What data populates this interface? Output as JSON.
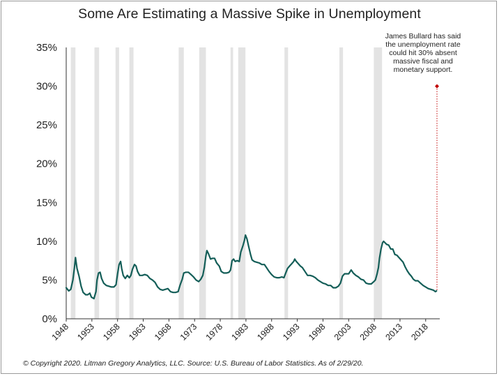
{
  "title": "Some Are Estimating a Massive Spike in Unemployment",
  "footer": "© Copyright 2020. Litman Gregory Analytics, LLC. Source: U.S. Bureau of Labor Statistics. As of 2/29/20.",
  "colors": {
    "line": "#145e58",
    "recession": "#e3e3e3",
    "marker": "#c00000",
    "axis": "#333333"
  },
  "chart_data": {
    "type": "line",
    "title": "Some Are Estimating a Massive Spike in Unemployment",
    "xlabel": "",
    "ylabel": "",
    "xlim": [
      1948,
      2020.2
    ],
    "ylim": [
      0,
      35
    ],
    "y_ticks": [
      "0%",
      "5%",
      "10%",
      "15%",
      "20%",
      "25%",
      "30%",
      "35%"
    ],
    "x_ticks": [
      "1948",
      "1953",
      "1958",
      "1963",
      "1968",
      "1973",
      "1978",
      "1983",
      "1988",
      "1993",
      "1998",
      "2003",
      "2008",
      "2013",
      "2018"
    ],
    "recessions": [
      [
        1948.9,
        1949.8
      ],
      [
        1953.5,
        1954.4
      ],
      [
        1957.6,
        1958.3
      ],
      [
        1960.3,
        1961.1
      ],
      [
        1969.9,
        1970.9
      ],
      [
        1973.9,
        1975.2
      ],
      [
        1980.0,
        1980.5
      ],
      [
        1981.5,
        1982.9
      ],
      [
        1990.5,
        1991.2
      ],
      [
        2001.2,
        2001.9
      ],
      [
        2007.9,
        2009.5
      ]
    ],
    "grid": false,
    "legend": "none",
    "series": [
      {
        "values": [
          [
            1948.0,
            4.0
          ],
          [
            1948.5,
            3.6
          ],
          [
            1948.9,
            3.8
          ],
          [
            1949.3,
            5.0
          ],
          [
            1949.6,
            6.6
          ],
          [
            1949.8,
            7.9
          ],
          [
            1950.1,
            6.5
          ],
          [
            1950.5,
            5.5
          ],
          [
            1950.9,
            4.2
          ],
          [
            1951.3,
            3.4
          ],
          [
            1951.8,
            3.1
          ],
          [
            1952.2,
            3.1
          ],
          [
            1952.6,
            3.3
          ],
          [
            1952.9,
            2.8
          ],
          [
            1953.4,
            2.6
          ],
          [
            1953.8,
            3.5
          ],
          [
            1954.0,
            5.0
          ],
          [
            1954.3,
            5.9
          ],
          [
            1954.6,
            6.0
          ],
          [
            1954.9,
            5.2
          ],
          [
            1955.3,
            4.6
          ],
          [
            1955.8,
            4.3
          ],
          [
            1956.3,
            4.2
          ],
          [
            1956.8,
            4.1
          ],
          [
            1957.3,
            4.1
          ],
          [
            1957.7,
            4.4
          ],
          [
            1958.0,
            5.8
          ],
          [
            1958.3,
            7.0
          ],
          [
            1958.6,
            7.4
          ],
          [
            1958.8,
            6.5
          ],
          [
            1959.1,
            5.6
          ],
          [
            1959.5,
            5.2
          ],
          [
            1959.9,
            5.6
          ],
          [
            1960.3,
            5.3
          ],
          [
            1960.6,
            5.6
          ],
          [
            1960.9,
            6.4
          ],
          [
            1961.3,
            7.0
          ],
          [
            1961.6,
            6.8
          ],
          [
            1961.9,
            6.1
          ],
          [
            1962.3,
            5.6
          ],
          [
            1962.8,
            5.6
          ],
          [
            1963.3,
            5.7
          ],
          [
            1963.8,
            5.6
          ],
          [
            1964.3,
            5.2
          ],
          [
            1964.8,
            5.0
          ],
          [
            1965.3,
            4.7
          ],
          [
            1965.8,
            4.1
          ],
          [
            1966.3,
            3.8
          ],
          [
            1966.8,
            3.7
          ],
          [
            1967.3,
            3.8
          ],
          [
            1967.8,
            3.9
          ],
          [
            1968.3,
            3.5
          ],
          [
            1968.8,
            3.4
          ],
          [
            1969.3,
            3.4
          ],
          [
            1969.8,
            3.5
          ],
          [
            1970.2,
            4.4
          ],
          [
            1970.6,
            5.1
          ],
          [
            1970.9,
            5.9
          ],
          [
            1971.3,
            6.0
          ],
          [
            1971.8,
            6.0
          ],
          [
            1972.3,
            5.7
          ],
          [
            1972.8,
            5.4
          ],
          [
            1973.3,
            5.0
          ],
          [
            1973.8,
            4.8
          ],
          [
            1974.2,
            5.1
          ],
          [
            1974.6,
            5.6
          ],
          [
            1974.9,
            6.6
          ],
          [
            1975.2,
            8.1
          ],
          [
            1975.4,
            8.8
          ],
          [
            1975.7,
            8.4
          ],
          [
            1976.1,
            7.7
          ],
          [
            1976.5,
            7.8
          ],
          [
            1976.9,
            7.8
          ],
          [
            1977.3,
            7.2
          ],
          [
            1977.8,
            6.8
          ],
          [
            1978.2,
            6.1
          ],
          [
            1978.7,
            5.9
          ],
          [
            1979.2,
            5.9
          ],
          [
            1979.7,
            6.0
          ],
          [
            1980.0,
            6.3
          ],
          [
            1980.3,
            7.5
          ],
          [
            1980.6,
            7.7
          ],
          [
            1980.9,
            7.4
          ],
          [
            1981.3,
            7.5
          ],
          [
            1981.7,
            7.4
          ],
          [
            1982.0,
            8.6
          ],
          [
            1982.4,
            9.4
          ],
          [
            1982.7,
            10.1
          ],
          [
            1982.9,
            10.8
          ],
          [
            1983.2,
            10.3
          ],
          [
            1983.5,
            9.4
          ],
          [
            1983.9,
            8.3
          ],
          [
            1984.2,
            7.6
          ],
          [
            1984.6,
            7.4
          ],
          [
            1985.1,
            7.3
          ],
          [
            1985.6,
            7.2
          ],
          [
            1986.1,
            7.0
          ],
          [
            1986.6,
            7.0
          ],
          [
            1987.0,
            6.6
          ],
          [
            1987.5,
            6.1
          ],
          [
            1988.0,
            5.7
          ],
          [
            1988.5,
            5.4
          ],
          [
            1989.0,
            5.3
          ],
          [
            1989.5,
            5.3
          ],
          [
            1990.0,
            5.4
          ],
          [
            1990.4,
            5.3
          ],
          [
            1990.8,
            6.0
          ],
          [
            1991.1,
            6.5
          ],
          [
            1991.5,
            6.8
          ],
          [
            1991.9,
            7.1
          ],
          [
            1992.3,
            7.4
          ],
          [
            1992.5,
            7.7
          ],
          [
            1992.8,
            7.4
          ],
          [
            1993.2,
            7.1
          ],
          [
            1993.6,
            6.8
          ],
          [
            1994.0,
            6.6
          ],
          [
            1994.5,
            6.1
          ],
          [
            1995.0,
            5.6
          ],
          [
            1995.5,
            5.6
          ],
          [
            1996.0,
            5.5
          ],
          [
            1996.5,
            5.3
          ],
          [
            1997.0,
            5.0
          ],
          [
            1997.5,
            4.8
          ],
          [
            1998.0,
            4.6
          ],
          [
            1998.5,
            4.5
          ],
          [
            1999.0,
            4.3
          ],
          [
            1999.5,
            4.3
          ],
          [
            2000.0,
            4.0
          ],
          [
            2000.5,
            4.0
          ],
          [
            2001.0,
            4.2
          ],
          [
            2001.4,
            4.6
          ],
          [
            2001.8,
            5.5
          ],
          [
            2002.2,
            5.8
          ],
          [
            2002.6,
            5.8
          ],
          [
            2003.0,
            5.8
          ],
          [
            2003.5,
            6.3
          ],
          [
            2003.9,
            5.9
          ],
          [
            2004.4,
            5.6
          ],
          [
            2004.9,
            5.4
          ],
          [
            2005.4,
            5.1
          ],
          [
            2005.9,
            5.0
          ],
          [
            2006.4,
            4.6
          ],
          [
            2006.9,
            4.5
          ],
          [
            2007.4,
            4.5
          ],
          [
            2007.9,
            4.8
          ],
          [
            2008.2,
            5.0
          ],
          [
            2008.5,
            5.7
          ],
          [
            2008.8,
            6.6
          ],
          [
            2009.0,
            7.8
          ],
          [
            2009.3,
            9.0
          ],
          [
            2009.6,
            9.8
          ],
          [
            2009.8,
            10.0
          ],
          [
            2010.1,
            9.8
          ],
          [
            2010.4,
            9.6
          ],
          [
            2010.8,
            9.5
          ],
          [
            2011.2,
            9.0
          ],
          [
            2011.6,
            9.0
          ],
          [
            2012.0,
            8.3
          ],
          [
            2012.4,
            8.2
          ],
          [
            2012.8,
            7.9
          ],
          [
            2013.2,
            7.6
          ],
          [
            2013.6,
            7.3
          ],
          [
            2014.0,
            6.7
          ],
          [
            2014.4,
            6.2
          ],
          [
            2014.8,
            5.8
          ],
          [
            2015.2,
            5.5
          ],
          [
            2015.6,
            5.1
          ],
          [
            2016.0,
            4.9
          ],
          [
            2016.5,
            4.9
          ],
          [
            2017.0,
            4.6
          ],
          [
            2017.5,
            4.3
          ],
          [
            2018.0,
            4.1
          ],
          [
            2018.5,
            3.9
          ],
          [
            2019.0,
            3.8
          ],
          [
            2019.5,
            3.7
          ],
          [
            2019.9,
            3.5
          ],
          [
            2020.1,
            3.6
          ]
        ]
      }
    ],
    "projection": {
      "x": 2020.2,
      "y": 30,
      "annotation": [
        "James Bullard has said",
        "the unemployment rate",
        "could hit 30% absent",
        "massive fiscal and",
        "monetary support."
      ]
    }
  }
}
